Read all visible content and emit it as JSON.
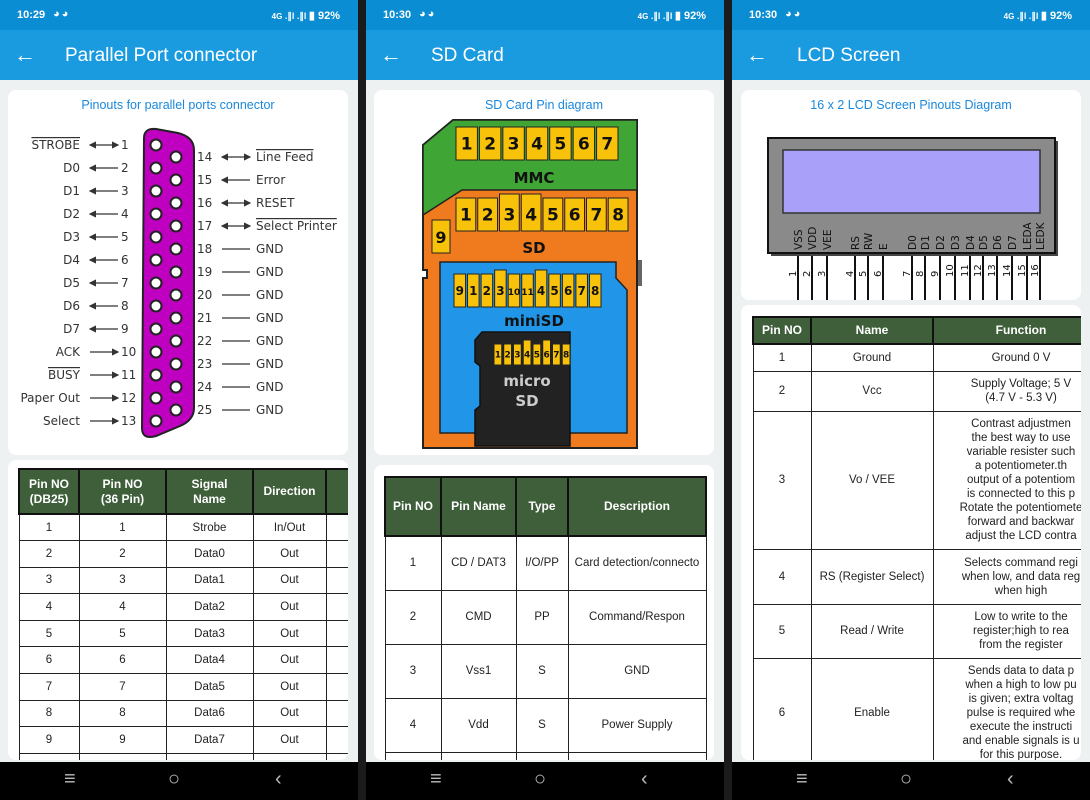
{
  "screens": [
    {
      "status": {
        "time": "10:29",
        "network": "4G",
        "battery": "92%"
      },
      "title": "Parallel Port connector",
      "diagram_title": "Pinouts for parallel ports connector",
      "diagram": {
        "left_pins": [
          {
            "label": "STROBE",
            "pin": "1",
            "dir": "both",
            "overline": true
          },
          {
            "label": "D0",
            "pin": "2",
            "dir": "out"
          },
          {
            "label": "D1",
            "pin": "3",
            "dir": "out"
          },
          {
            "label": "D2",
            "pin": "4",
            "dir": "out"
          },
          {
            "label": "D3",
            "pin": "5",
            "dir": "out"
          },
          {
            "label": "D4",
            "pin": "6",
            "dir": "out"
          },
          {
            "label": "D5",
            "pin": "7",
            "dir": "out"
          },
          {
            "label": "D6",
            "pin": "8",
            "dir": "out"
          },
          {
            "label": "D7",
            "pin": "9",
            "dir": "out"
          },
          {
            "label": "ACK",
            "pin": "10",
            "dir": "in"
          },
          {
            "label": "BUSY",
            "pin": "11",
            "dir": "in",
            "overline": true
          },
          {
            "label": "Paper Out",
            "pin": "12",
            "dir": "in"
          },
          {
            "label": "Select",
            "pin": "13",
            "dir": "in"
          }
        ],
        "right_pins": [
          {
            "label": "Line Feed",
            "pin": "14",
            "dir": "both",
            "overline": true
          },
          {
            "label": "Error",
            "pin": "15",
            "dir": "in"
          },
          {
            "label": "RESET",
            "pin": "16",
            "dir": "both"
          },
          {
            "label": "Select Printer",
            "pin": "17",
            "dir": "both",
            "overline": true
          },
          {
            "label": "GND",
            "pin": "18",
            "dir": "none"
          },
          {
            "label": "GND",
            "pin": "19",
            "dir": "none"
          },
          {
            "label": "GND",
            "pin": "20",
            "dir": "none"
          },
          {
            "label": "GND",
            "pin": "21",
            "dir": "none"
          },
          {
            "label": "GND",
            "pin": "22",
            "dir": "none"
          },
          {
            "label": "GND",
            "pin": "23",
            "dir": "none"
          },
          {
            "label": "GND",
            "pin": "24",
            "dir": "none"
          },
          {
            "label": "GND",
            "pin": "25",
            "dir": "none"
          }
        ],
        "connector_color": "#c000c0"
      },
      "table": {
        "headers": [
          "Pin NO\n(DB25)",
          "Pin NO\n(36 Pin)",
          "Signal\nName",
          "Direction",
          ""
        ],
        "rows": [
          [
            "1",
            "1",
            "Strobe",
            "In/Out",
            ""
          ],
          [
            "2",
            "2",
            "Data0",
            "Out",
            ""
          ],
          [
            "3",
            "3",
            "Data1",
            "Out",
            ""
          ],
          [
            "4",
            "4",
            "Data2",
            "Out",
            ""
          ],
          [
            "5",
            "5",
            "Data3",
            "Out",
            ""
          ],
          [
            "6",
            "6",
            "Data4",
            "Out",
            ""
          ],
          [
            "7",
            "7",
            "Data5",
            "Out",
            ""
          ],
          [
            "8",
            "8",
            "Data6",
            "Out",
            ""
          ],
          [
            "9",
            "9",
            "Data7",
            "Out",
            ""
          ],
          [
            "",
            "",
            "",
            "",
            ""
          ]
        ]
      }
    },
    {
      "status": {
        "time": "10:30",
        "network": "4G",
        "battery": "92%"
      },
      "title": "SD Card",
      "diagram_title": "SD Card Pin diagram",
      "diagram": {
        "mmc_pins": [
          "1",
          "2",
          "3",
          "4",
          "5",
          "6",
          "7"
        ],
        "mmc_label": "MMC",
        "sd_pins": [
          "1",
          "2",
          "3",
          "4",
          "5",
          "6",
          "7",
          "8"
        ],
        "sd_extra_pin": "9",
        "sd_label": "SD",
        "minisd_pins": [
          "9",
          "1",
          "2",
          "3",
          "10",
          "11",
          "4",
          "5",
          "6",
          "7",
          "8"
        ],
        "minisd_label": "miniSD",
        "microsd_pins": [
          "1",
          "2",
          "3",
          "4",
          "5",
          "6",
          "7",
          "8"
        ],
        "microsd_label": [
          "micro",
          "SD"
        ],
        "colors": {
          "mmc": "#3fa535",
          "sd": "#f07b1e",
          "minisd": "#2196e8",
          "microsd": "#222222",
          "pin": "#f9c20a"
        }
      },
      "table": {
        "headers": [
          "Pin NO",
          "Pin Name",
          "Type",
          "Description"
        ],
        "rows": [
          [
            "1",
            "CD / DAT3",
            "I/O/PP",
            "Card detection/connecto"
          ],
          [
            "2",
            "CMD",
            "PP",
            "Command/Respon"
          ],
          [
            "3",
            "Vss1",
            "S",
            "GND"
          ],
          [
            "4",
            "Vdd",
            "S",
            "Power Supply"
          ],
          [
            "",
            "",
            "",
            ""
          ]
        ]
      }
    },
    {
      "status": {
        "time": "10:30",
        "network": "4G",
        "battery": "92%"
      },
      "title": "LCD Screen",
      "diagram_title": "16 x 2 LCD Screen Pinouts Diagram",
      "diagram": {
        "pins": [
          {
            "n": "1",
            "label": "VSS"
          },
          {
            "n": "2",
            "label": "VDD"
          },
          {
            "n": "3",
            "label": "VEE"
          },
          {
            "n": "4",
            "label": "RS"
          },
          {
            "n": "5",
            "label": "RW"
          },
          {
            "n": "6",
            "label": "E"
          },
          {
            "n": "7",
            "label": "D0"
          },
          {
            "n": "8",
            "label": "D1"
          },
          {
            "n": "9",
            "label": "D2"
          },
          {
            "n": "10",
            "label": "D3"
          },
          {
            "n": "11",
            "label": "D4"
          },
          {
            "n": "12",
            "label": "D5"
          },
          {
            "n": "13",
            "label": "D6"
          },
          {
            "n": "14",
            "label": "D7"
          },
          {
            "n": "15",
            "label": "LEDA"
          },
          {
            "n": "16",
            "label": "LEDK"
          }
        ],
        "screen_color": "#a9a1f9",
        "body_color": "#8a8a8a"
      },
      "table": {
        "headers": [
          "Pin NO",
          "Name",
          "Function"
        ],
        "rows": [
          [
            "1",
            "Ground",
            "Ground 0 V"
          ],
          [
            "2",
            "Vcc",
            "Supply Voltage; 5 V\n(4.7 V - 5.3 V)"
          ],
          [
            "3",
            "Vo / VEE",
            "Contrast adjustmen\nthe best way to use\nvariable resister such\na potentiometer.th\noutput of a potentiom\nis connected to this p\nRotate the potentiomete\nforward and backwar\nadjust the LCD contra"
          ],
          [
            "4",
            "RS (Register Select)",
            "Selects command regi\nwhen low, and data reg\nwhen high"
          ],
          [
            "5",
            "Read / Write",
            "Low to write to the\nregister;high to rea\nfrom the register"
          ],
          [
            "6",
            "Enable",
            "Sends data to data p\nwhen a high to low pu\nis given; extra voltag\npulse is required whe\nexecute the instructi\nand enable signals is u\nfor this purpose."
          ]
        ]
      }
    }
  ],
  "navbar": {
    "menu_icon": "recent-apps-icon",
    "home_icon": "home-icon",
    "back_icon": "back-icon"
  }
}
